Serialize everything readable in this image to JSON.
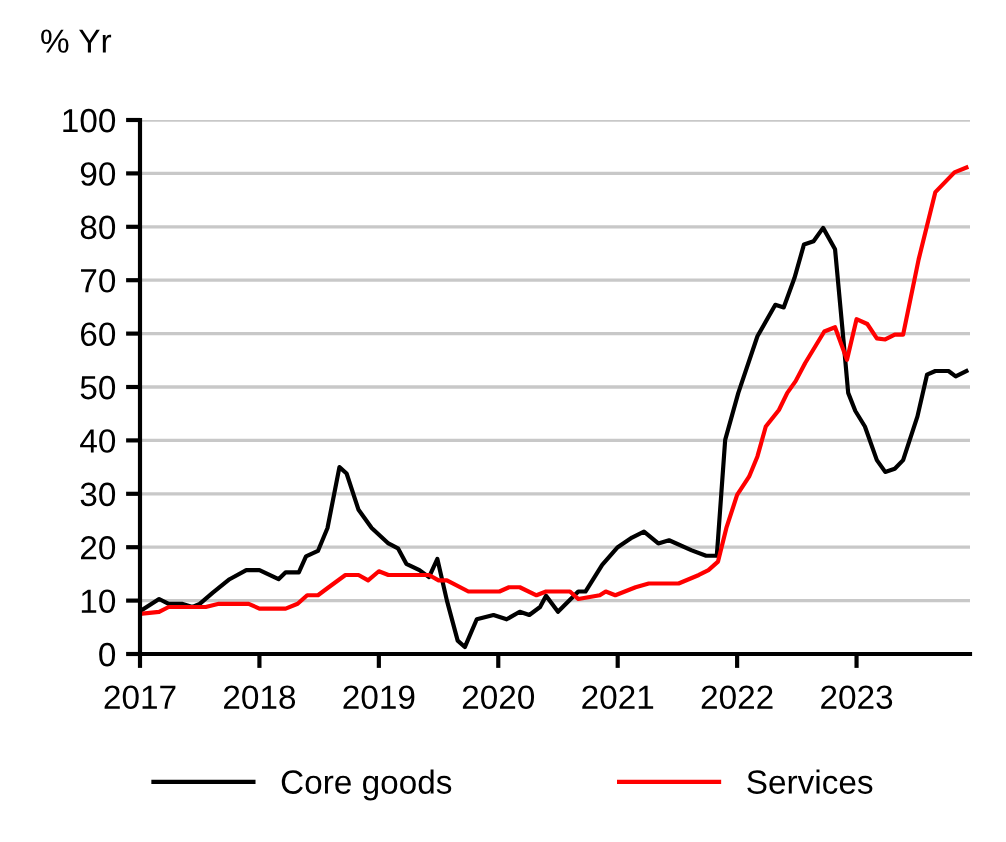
{
  "chart_data": {
    "type": "line",
    "ylabel": "% Yr",
    "xlim": [
      2017,
      2023.95
    ],
    "xticks": [
      2017,
      2018,
      2019,
      2020,
      2021,
      2022,
      2023
    ],
    "ylim": [
      0,
      100
    ],
    "yticks": [
      0,
      10,
      20,
      30,
      40,
      50,
      60,
      70,
      80,
      90,
      100
    ],
    "grid": "y",
    "legend": "bottom",
    "line_style": "solid",
    "marker": "none",
    "series": [
      {
        "name": "Core goods",
        "color": "#000000",
        "x": [
          2017.0,
          2017.16,
          2017.24,
          2017.35,
          2017.44,
          2017.5,
          2017.61,
          2017.75,
          2017.89,
          2018.0,
          2018.16,
          2018.22,
          2018.33,
          2018.39,
          2018.49,
          2018.57,
          2018.67,
          2018.73,
          2018.83,
          2018.94,
          2019.08,
          2019.16,
          2019.23,
          2019.34,
          2019.42,
          2019.49,
          2019.57,
          2019.66,
          2019.72,
          2019.82,
          2019.96,
          2020.07,
          2020.18,
          2020.26,
          2020.35,
          2020.4,
          2020.5,
          2020.67,
          2020.73,
          2020.87,
          2021.0,
          2021.12,
          2021.22,
          2021.34,
          2021.43,
          2021.62,
          2021.74,
          2021.83,
          2021.9,
          2022.01,
          2022.17,
          2022.32,
          2022.39,
          2022.48,
          2022.56,
          2022.64,
          2022.72,
          2022.82,
          2022.89,
          2022.93,
          2022.99,
          2023.07,
          2023.17,
          2023.24,
          2023.32,
          2023.39,
          2023.51,
          2023.59,
          2023.66,
          2023.77,
          2023.83,
          2023.92
        ],
        "values": [
          8,
          10.3,
          9.4,
          9.4,
          8.8,
          9.4,
          11.5,
          14,
          15.7,
          15.7,
          14,
          15.3,
          15.3,
          18.3,
          19.3,
          23.6,
          35,
          33.8,
          27,
          23.6,
          20.7,
          19.8,
          16.9,
          15.7,
          14.4,
          17.8,
          10,
          2.5,
          1.3,
          6.5,
          7.3,
          6.5,
          7.9,
          7.3,
          8.8,
          10.9,
          7.9,
          11.7,
          11.7,
          16.7,
          20,
          21.8,
          22.9,
          20.7,
          21.3,
          19.4,
          18.4,
          18.4,
          40.1,
          48.9,
          59.5,
          65.4,
          64.9,
          70.4,
          76.7,
          77.3,
          79.8,
          75.8,
          58.9,
          48.9,
          45.5,
          42.6,
          36.3,
          34.1,
          34.7,
          36.3,
          44.5,
          52.3,
          53,
          53,
          52,
          53
        ]
      },
      {
        "name": "Services",
        "color": "#ff0000",
        "x": [
          2017.0,
          2017.16,
          2017.24,
          2017.55,
          2017.66,
          2017.91,
          2018.0,
          2018.22,
          2018.32,
          2018.4,
          2018.49,
          2018.58,
          2018.72,
          2018.83,
          2018.91,
          2019.0,
          2019.08,
          2019.42,
          2019.5,
          2019.57,
          2019.75,
          2020.01,
          2020.09,
          2020.18,
          2020.32,
          2020.4,
          2020.6,
          2020.67,
          2020.85,
          2020.9,
          2020.98,
          2021.15,
          2021.26,
          2021.51,
          2021.68,
          2021.76,
          2021.84,
          2021.91,
          2022.0,
          2022.1,
          2022.17,
          2022.24,
          2022.35,
          2022.42,
          2022.49,
          2022.57,
          2022.73,
          2022.82,
          2022.92,
          2023.0,
          2023.09,
          2023.17,
          2023.24,
          2023.32,
          2023.39,
          2023.52,
          2023.66,
          2023.82,
          2023.92
        ],
        "values": [
          7.5,
          7.9,
          8.8,
          8.8,
          9.4,
          9.4,
          8.5,
          8.5,
          9.4,
          11,
          11,
          12.5,
          14.8,
          14.8,
          13.8,
          15.5,
          14.8,
          14.8,
          13.8,
          13.8,
          11.7,
          11.7,
          12.5,
          12.5,
          11,
          11.7,
          11.7,
          10.3,
          11,
          11.7,
          11,
          12.5,
          13.2,
          13.2,
          14.8,
          15.7,
          17.3,
          23.6,
          29.8,
          33.2,
          37,
          42.6,
          45.7,
          48.9,
          51.1,
          54.5,
          60.4,
          61.2,
          55.1,
          62.7,
          61.8,
          59.1,
          58.9,
          59.8,
          59.8,
          73.9,
          86.5,
          90.2,
          91.1
        ]
      }
    ]
  }
}
